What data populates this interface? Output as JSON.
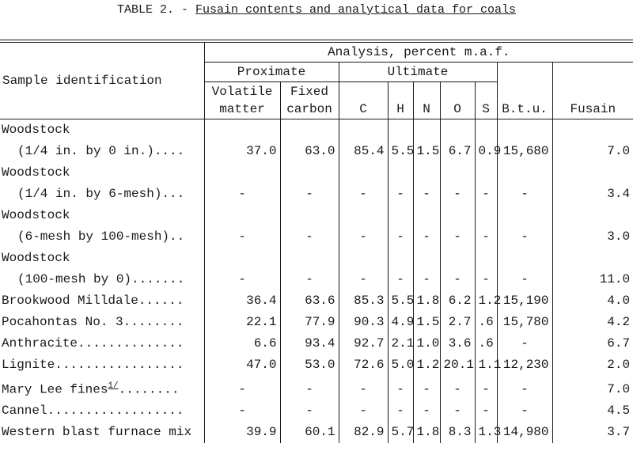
{
  "title": {
    "prefix": "TABLE 2. -",
    "text": "Fusain contents and analytical data for coals"
  },
  "header": {
    "sample": "Sample identification",
    "analysis": "Analysis, percent m.a.f.",
    "proximate": "Proximate",
    "ultimate": "Ultimate",
    "columns": [
      [
        "Volatile",
        "matter"
      ],
      [
        "Fixed",
        "carbon"
      ],
      "C",
      "H",
      "N",
      "O",
      "S",
      "B.t.u.",
      "Fusain"
    ]
  },
  "table": {
    "rows": [
      {
        "label": [
          "Woodstock",
          "(1/4 in. by 0 in.)...."
        ],
        "cells": [
          "37.0",
          "63.0",
          "85.4",
          "5.5",
          "1.5",
          "6.7",
          "0.9",
          "15,680",
          "7.0"
        ]
      },
      {
        "label": [
          "Woodstock",
          "(1/4 in. by 6-mesh)..."
        ],
        "cells": [
          "-",
          "-",
          "-",
          "-",
          "-",
          "-",
          "-",
          "-",
          "3.4"
        ]
      },
      {
        "label": [
          "Woodstock",
          "(6-mesh by 100-mesh).."
        ],
        "cells": [
          "-",
          "-",
          "-",
          "-",
          "-",
          "-",
          "-",
          "-",
          "3.0"
        ]
      },
      {
        "label": [
          "Woodstock",
          "(100-mesh by 0)......."
        ],
        "cells": [
          "-",
          "-",
          "-",
          "-",
          "-",
          "-",
          "-",
          "-",
          "11.0"
        ]
      },
      {
        "label": [
          "Brookwood Milldale......"
        ],
        "cells": [
          "36.4",
          "63.6",
          "85.3",
          "5.5",
          "1.8",
          "6.2",
          "1.2",
          "15,190",
          "4.0"
        ]
      },
      {
        "label": [
          "Pocahontas No. 3........"
        ],
        "cells": [
          "22.1",
          "77.9",
          "90.3",
          "4.9",
          "1.5",
          "2.7",
          ".6",
          "15,780",
          "4.2"
        ]
      },
      {
        "label": [
          "Anthracite.............."
        ],
        "cells": [
          "6.6",
          "93.4",
          "92.7",
          "2.1",
          "1.0",
          "3.6",
          ".6",
          "-",
          "6.7"
        ]
      },
      {
        "label": [
          "Lignite................."
        ],
        "cells": [
          "47.0",
          "53.0",
          "72.6",
          "5.0",
          "1.2",
          "20.1",
          "1.1",
          "12,230",
          "2.0"
        ]
      },
      {
        "label": [
          "Mary Lee fines"
        ],
        "footnote": "1/",
        "leader": "........",
        "cells": [
          "-",
          "-",
          "-",
          "-",
          "-",
          "-",
          "-",
          "-",
          "7.0"
        ]
      },
      {
        "label": [
          "Cannel.................."
        ],
        "cells": [
          "-",
          "-",
          "-",
          "-",
          "-",
          "-",
          "-",
          "-",
          "4.5"
        ]
      },
      {
        "label": [
          "Western blast furnace mix"
        ],
        "cells": [
          "39.9",
          "60.1",
          "82.9",
          "5.7",
          "1.8",
          "8.3",
          "1.3",
          "14,980",
          "3.7"
        ]
      }
    ]
  }
}
